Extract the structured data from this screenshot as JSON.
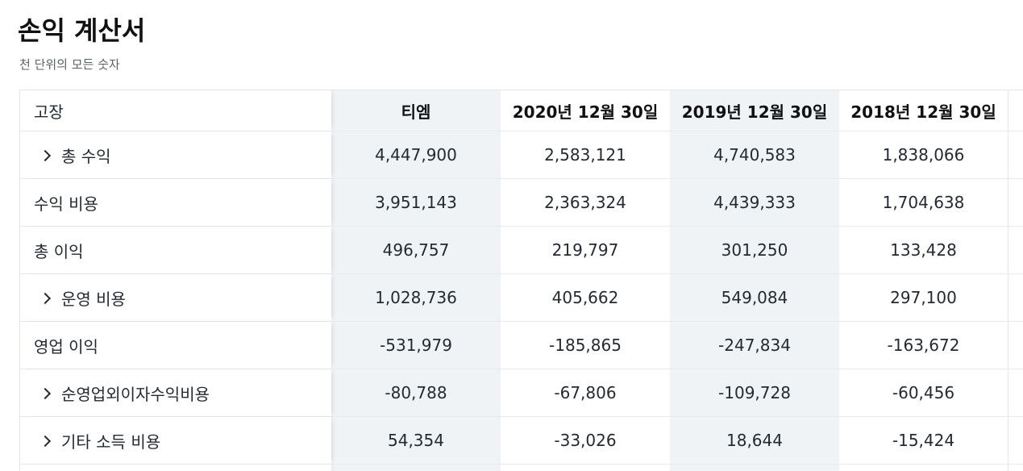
{
  "page": {
    "title": "손익 계산서",
    "subtitle": "천 단위의 모든 숫자"
  },
  "table": {
    "headers": {
      "name": "고장",
      "c1": "티엠",
      "c2": "2020년 12월 30일",
      "c3": "2019년 12월 30일",
      "c4": "2018년 12월 30일"
    },
    "rows": [
      {
        "label": "총 수익",
        "expandable": true,
        "c1": "4,447,900",
        "c2": "2,583,121",
        "c3": "4,740,583",
        "c4": "1,838,066"
      },
      {
        "label": "수익 비용",
        "expandable": false,
        "c1": "3,951,143",
        "c2": "2,363,324",
        "c3": "4,439,333",
        "c4": "1,704,638"
      },
      {
        "label": "총 이익",
        "expandable": false,
        "c1": "496,757",
        "c2": "219,797",
        "c3": "301,250",
        "c4": "133,428"
      },
      {
        "label": "운영 비용",
        "expandable": true,
        "c1": "1,028,736",
        "c2": "405,662",
        "c3": "549,084",
        "c4": "297,100"
      },
      {
        "label": "영업 이익",
        "expandable": false,
        "c1": "-531,979",
        "c2": "-185,865",
        "c3": "-247,834",
        "c4": "-163,672"
      },
      {
        "label": "순영업외이자수익비용",
        "expandable": true,
        "c1": "-80,788",
        "c2": "-67,806",
        "c3": "-109,728",
        "c4": "-60,456"
      },
      {
        "label": "기타 소득 비용",
        "expandable": true,
        "c1": "54,354",
        "c2": "-33,026",
        "c3": "18,644",
        "c4": "-15,424"
      }
    ]
  }
}
